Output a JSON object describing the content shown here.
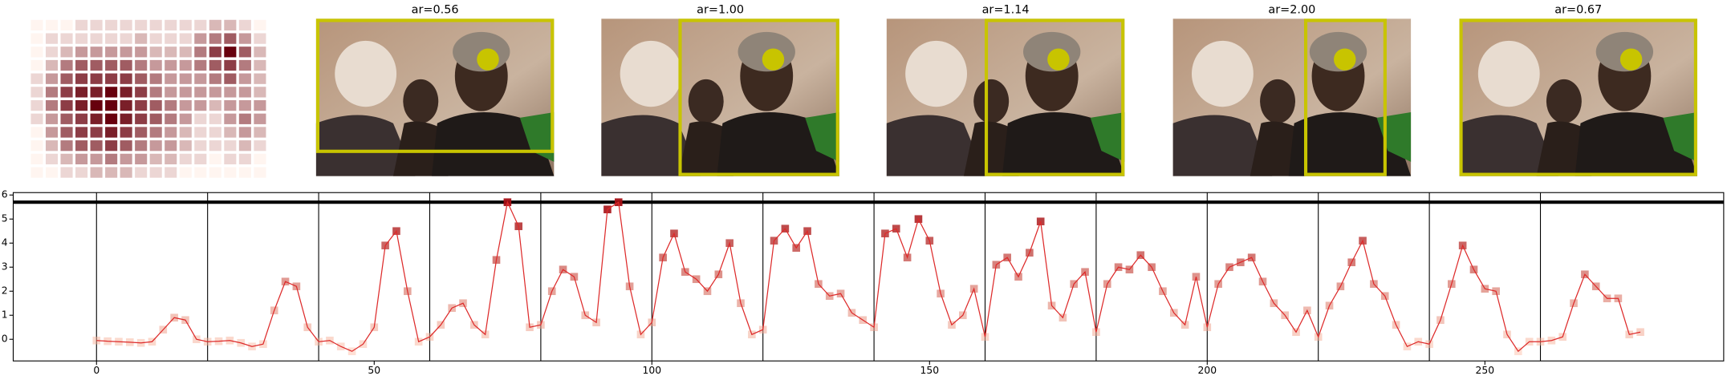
{
  "heatmap": {
    "values": [
      [
        0,
        0,
        0,
        1,
        1,
        1,
        1,
        1,
        1,
        1,
        1,
        1,
        2,
        2,
        1,
        0
      ],
      [
        0,
        1,
        1,
        1,
        1,
        1,
        1,
        2,
        1,
        1,
        1,
        3,
        4,
        5,
        3,
        1
      ],
      [
        0,
        1,
        2,
        3,
        3,
        3,
        3,
        3,
        2,
        2,
        2,
        4,
        6,
        8,
        5,
        2
      ],
      [
        0,
        2,
        4,
        5,
        5,
        5,
        5,
        4,
        3,
        3,
        3,
        4,
        5,
        6,
        4,
        2
      ],
      [
        1,
        3,
        5,
        6,
        6,
        6,
        6,
        5,
        4,
        3,
        3,
        3,
        4,
        5,
        3,
        2
      ],
      [
        1,
        4,
        6,
        7,
        7,
        8,
        7,
        6,
        4,
        3,
        3,
        3,
        3,
        3,
        3,
        2
      ],
      [
        1,
        4,
        6,
        7,
        8,
        8,
        7,
        6,
        5,
        4,
        3,
        3,
        2,
        3,
        3,
        3
      ],
      [
        1,
        3,
        5,
        6,
        7,
        8,
        7,
        6,
        5,
        4,
        3,
        1,
        1,
        3,
        4,
        3
      ],
      [
        0,
        3,
        5,
        6,
        6,
        7,
        6,
        5,
        4,
        3,
        2,
        1,
        1,
        2,
        3,
        2
      ],
      [
        0,
        2,
        4,
        5,
        5,
        6,
        5,
        4,
        3,
        3,
        2,
        1,
        1,
        1,
        2,
        1
      ],
      [
        0,
        1,
        2,
        3,
        3,
        4,
        3,
        3,
        2,
        2,
        1,
        1,
        0,
        1,
        1,
        0
      ],
      [
        0,
        0,
        1,
        1,
        2,
        2,
        2,
        1,
        1,
        1,
        0,
        0,
        0,
        0,
        0,
        0
      ]
    ],
    "colors": [
      "#fff5f0",
      "#67000d"
    ]
  },
  "panels": [
    {
      "title": "ar=0.56"
    },
    {
      "title": "ar=1.00"
    },
    {
      "title": "ar=1.14"
    },
    {
      "title": "ar=2.00"
    },
    {
      "title": "ar=0.67"
    }
  ],
  "chart_data": {
    "type": "line",
    "x": [
      0,
      2,
      4,
      6,
      8,
      10,
      12,
      14,
      16,
      18,
      20,
      22,
      24,
      26,
      28,
      30,
      32,
      34,
      36,
      38,
      40,
      42,
      44,
      46,
      48,
      50,
      52,
      54,
      56,
      58,
      60,
      62,
      64,
      66,
      68,
      70,
      72,
      74,
      76,
      78,
      80,
      82,
      84,
      86,
      88,
      90,
      92,
      94,
      96,
      98,
      100,
      102,
      104,
      106,
      108,
      110,
      112,
      114,
      116,
      118,
      120,
      122,
      124,
      126,
      128,
      130,
      132,
      134,
      136,
      138,
      140,
      142,
      144,
      146,
      148,
      150,
      152,
      154,
      156,
      158,
      160,
      162,
      164,
      166,
      168,
      170,
      172,
      174,
      176,
      178,
      180,
      182,
      184,
      186,
      188,
      190,
      192,
      194,
      196,
      198,
      200,
      202,
      204,
      206,
      208,
      210,
      212,
      214,
      216,
      218,
      220,
      222,
      224,
      226,
      228,
      230,
      232,
      234,
      236,
      238,
      240,
      242,
      244,
      246,
      248,
      250,
      252,
      254,
      256,
      258,
      260,
      262,
      264,
      266,
      268,
      270,
      272,
      274,
      276,
      278
    ],
    "series": [
      {
        "color": "#dd2a2a",
        "marker_colors": [
          "#fcbba1",
          "#a50f15"
        ],
        "values": [
          -0.05,
          -0.08,
          -0.1,
          -0.12,
          -0.15,
          -0.1,
          0.4,
          0.9,
          0.8,
          0.0,
          -0.1,
          -0.08,
          -0.05,
          -0.15,
          -0.3,
          -0.2,
          1.2,
          2.4,
          2.2,
          0.5,
          -0.1,
          -0.05,
          -0.3,
          -0.5,
          -0.2,
          0.5,
          3.9,
          4.5,
          2.0,
          -0.1,
          0.1,
          0.6,
          1.3,
          1.5,
          0.6,
          0.2,
          3.3,
          5.7,
          4.7,
          0.5,
          0.6,
          2.0,
          2.9,
          2.6,
          1.0,
          0.7,
          5.4,
          5.7,
          2.2,
          0.2,
          0.7,
          3.4,
          4.4,
          2.8,
          2.5,
          2.0,
          2.7,
          4.0,
          1.5,
          0.2,
          0.4,
          4.1,
          4.6,
          3.8,
          4.5,
          2.3,
          1.8,
          1.9,
          1.1,
          0.8,
          0.5,
          4.4,
          4.6,
          3.4,
          5.0,
          4.1,
          1.9,
          0.6,
          1.0,
          2.1,
          0.1,
          3.1,
          3.4,
          2.6,
          3.6,
          4.9,
          1.4,
          0.9,
          2.3,
          2.8,
          0.3,
          2.3,
          3.0,
          2.9,
          3.5,
          3.0,
          2.0,
          1.1,
          0.6,
          2.6,
          0.5,
          2.3,
          3.0,
          3.2,
          3.4,
          2.4,
          1.5,
          1.0,
          0.3,
          1.2,
          0.1,
          1.4,
          2.2,
          3.2,
          4.1,
          2.3,
          1.8,
          0.6,
          -0.3,
          -0.1,
          -0.2,
          0.8,
          2.3,
          3.9,
          2.9,
          2.1,
          2.0,
          0.2,
          -0.5,
          -0.1,
          -0.1,
          -0.05,
          0.1,
          1.5,
          2.7,
          2.2,
          1.7,
          1.7,
          0.2,
          0.3
        ]
      }
    ],
    "xlim": [
      -15,
      293
    ],
    "ylim": [
      -0.9,
      6.1
    ],
    "xticks": [
      0,
      50,
      100,
      150,
      200,
      250
    ],
    "yticks": [
      0,
      1,
      2,
      3,
      4,
      5,
      6
    ],
    "vlines": [
      0,
      20,
      40,
      60,
      80,
      100,
      120,
      140,
      160,
      180,
      200,
      220,
      240,
      260
    ],
    "hline": 5.7
  }
}
